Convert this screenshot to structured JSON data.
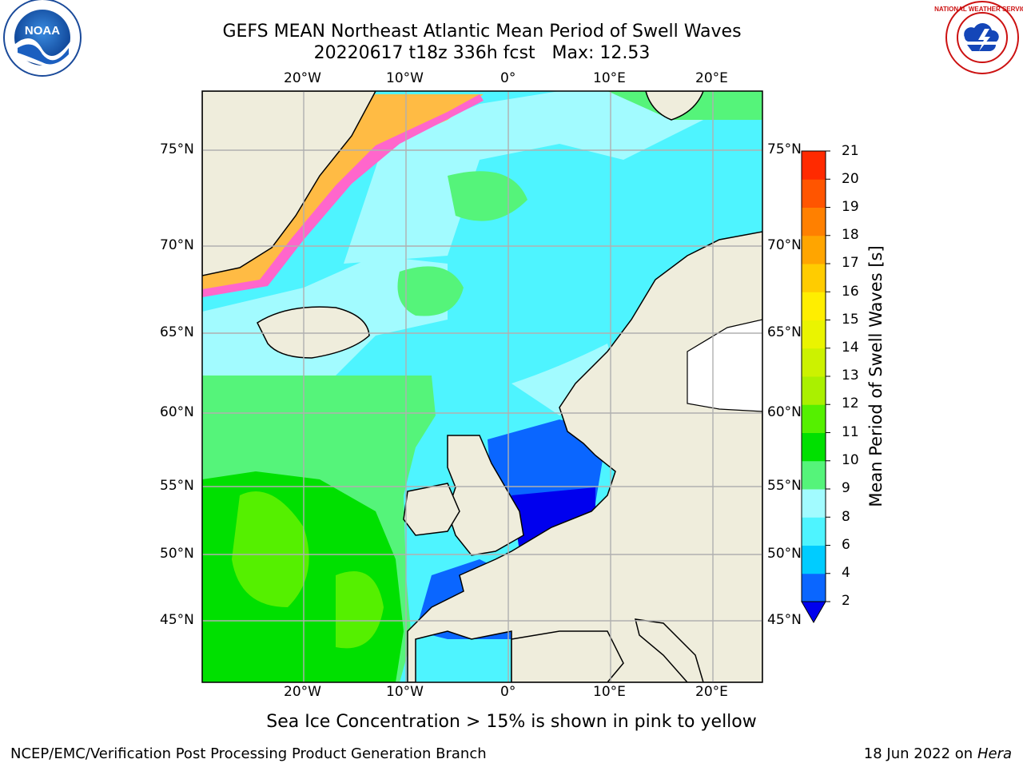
{
  "title_line1": "GEFS MEAN Northeast Atlantic Mean Period of Swell Waves",
  "title_line2": "20220617 t18z 336h fcst   Max: 12.53",
  "colorbar": {
    "label": "Mean Period of Swell Waves [s]",
    "ticks": [
      "2",
      "4",
      "6",
      "8",
      "9",
      "10",
      "11",
      "12",
      "13",
      "14",
      "15",
      "16",
      "17",
      "18",
      "19",
      "20",
      "21"
    ],
    "colors": [
      "#0a66ff",
      "#00ccff",
      "#4ef4ff",
      "#a2fbff",
      "#55f47a",
      "#00e000",
      "#55f000",
      "#aaf000",
      "#ccf200",
      "#eaf400",
      "#ffee00",
      "#ffcc00",
      "#ffa500",
      "#ff8000",
      "#ff5500",
      "#ff2a00",
      "#ff0000"
    ],
    "extend_color": "#0000ee"
  },
  "map": {
    "lon_labels_top": [
      "20°W",
      "10°W",
      "0°",
      "10°E",
      "20°E"
    ],
    "lon_labels_bottom": [
      "20°W",
      "10°W",
      "0°",
      "10°E",
      "20°E"
    ],
    "lat_labels_left": [
      "75°N",
      "70°N",
      "65°N",
      "60°N",
      "55°N",
      "50°N",
      "45°N"
    ],
    "lat_labels_right": [
      "75°N",
      "70°N",
      "65°N",
      "60°N",
      "55°N",
      "50°N",
      "45°N"
    ],
    "land_color": "#efeddc",
    "grid_color": "#b0b0b0"
  },
  "caption": "Sea Ice Concentration > 15% is shown in pink to yellow",
  "credit_left": "NCEP/EMC/Verification Post Processing Product Generation Branch",
  "credit_right_date": "18 Jun 2022 on",
  "credit_right_host": "Hera",
  "logos": {
    "left": "NOAA",
    "right_ring": "NATIONAL WEATHER SERVICE"
  }
}
